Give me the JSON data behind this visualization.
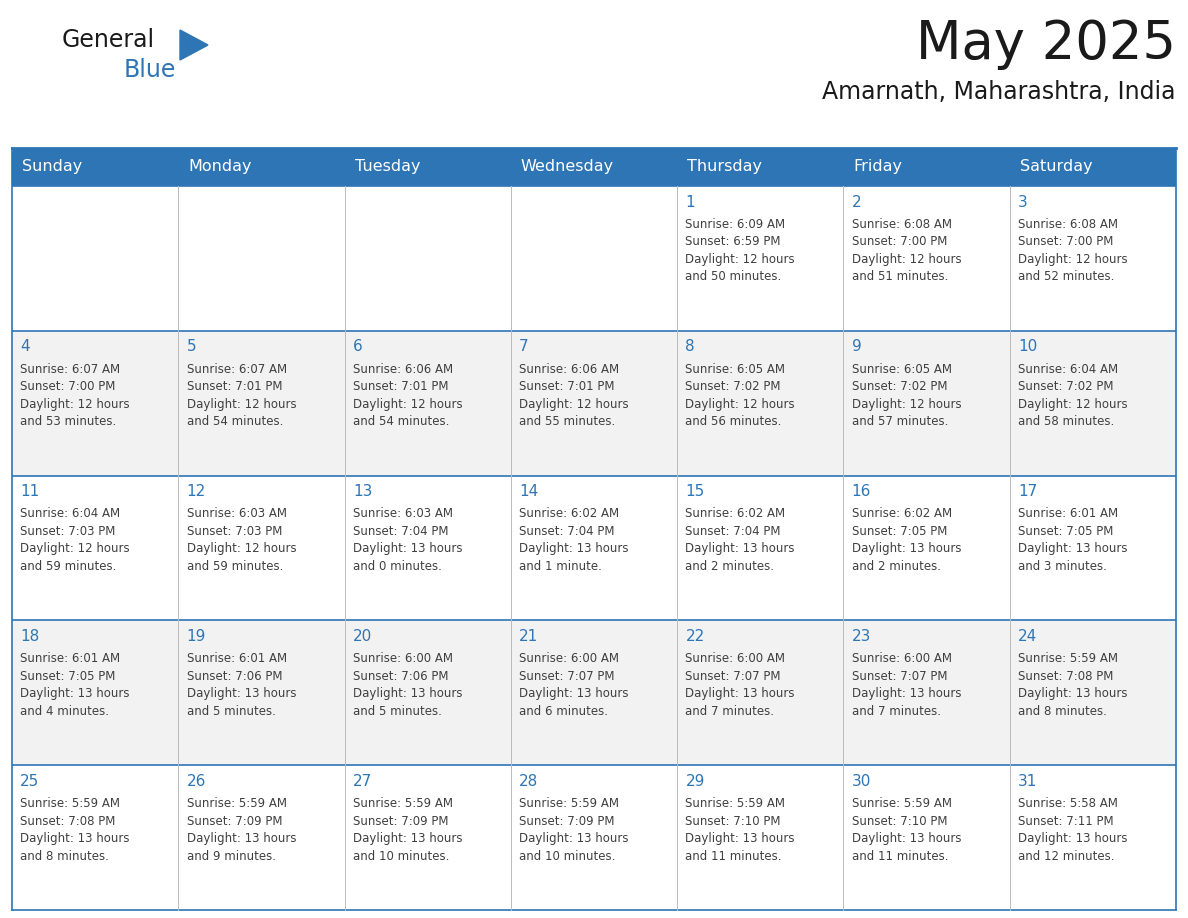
{
  "title": "May 2025",
  "subtitle": "Amarnath, Maharashtra, India",
  "header_bg": "#2E75B6",
  "header_text_color": "#FFFFFF",
  "cell_bg_odd": "#FFFFFF",
  "cell_bg_even": "#F2F2F2",
  "border_color": "#2E75B6",
  "day_number_color": "#2E75B6",
  "cell_text_color": "#404040",
  "days_of_week": [
    "Sunday",
    "Monday",
    "Tuesday",
    "Wednesday",
    "Thursday",
    "Friday",
    "Saturday"
  ],
  "weeks": [
    [
      {
        "day": "",
        "info": ""
      },
      {
        "day": "",
        "info": ""
      },
      {
        "day": "",
        "info": ""
      },
      {
        "day": "",
        "info": ""
      },
      {
        "day": "1",
        "info": "Sunrise: 6:09 AM\nSunset: 6:59 PM\nDaylight: 12 hours\nand 50 minutes."
      },
      {
        "day": "2",
        "info": "Sunrise: 6:08 AM\nSunset: 7:00 PM\nDaylight: 12 hours\nand 51 minutes."
      },
      {
        "day": "3",
        "info": "Sunrise: 6:08 AM\nSunset: 7:00 PM\nDaylight: 12 hours\nand 52 minutes."
      }
    ],
    [
      {
        "day": "4",
        "info": "Sunrise: 6:07 AM\nSunset: 7:00 PM\nDaylight: 12 hours\nand 53 minutes."
      },
      {
        "day": "5",
        "info": "Sunrise: 6:07 AM\nSunset: 7:01 PM\nDaylight: 12 hours\nand 54 minutes."
      },
      {
        "day": "6",
        "info": "Sunrise: 6:06 AM\nSunset: 7:01 PM\nDaylight: 12 hours\nand 54 minutes."
      },
      {
        "day": "7",
        "info": "Sunrise: 6:06 AM\nSunset: 7:01 PM\nDaylight: 12 hours\nand 55 minutes."
      },
      {
        "day": "8",
        "info": "Sunrise: 6:05 AM\nSunset: 7:02 PM\nDaylight: 12 hours\nand 56 minutes."
      },
      {
        "day": "9",
        "info": "Sunrise: 6:05 AM\nSunset: 7:02 PM\nDaylight: 12 hours\nand 57 minutes."
      },
      {
        "day": "10",
        "info": "Sunrise: 6:04 AM\nSunset: 7:02 PM\nDaylight: 12 hours\nand 58 minutes."
      }
    ],
    [
      {
        "day": "11",
        "info": "Sunrise: 6:04 AM\nSunset: 7:03 PM\nDaylight: 12 hours\nand 59 minutes."
      },
      {
        "day": "12",
        "info": "Sunrise: 6:03 AM\nSunset: 7:03 PM\nDaylight: 12 hours\nand 59 minutes."
      },
      {
        "day": "13",
        "info": "Sunrise: 6:03 AM\nSunset: 7:04 PM\nDaylight: 13 hours\nand 0 minutes."
      },
      {
        "day": "14",
        "info": "Sunrise: 6:02 AM\nSunset: 7:04 PM\nDaylight: 13 hours\nand 1 minute."
      },
      {
        "day": "15",
        "info": "Sunrise: 6:02 AM\nSunset: 7:04 PM\nDaylight: 13 hours\nand 2 minutes."
      },
      {
        "day": "16",
        "info": "Sunrise: 6:02 AM\nSunset: 7:05 PM\nDaylight: 13 hours\nand 2 minutes."
      },
      {
        "day": "17",
        "info": "Sunrise: 6:01 AM\nSunset: 7:05 PM\nDaylight: 13 hours\nand 3 minutes."
      }
    ],
    [
      {
        "day": "18",
        "info": "Sunrise: 6:01 AM\nSunset: 7:05 PM\nDaylight: 13 hours\nand 4 minutes."
      },
      {
        "day": "19",
        "info": "Sunrise: 6:01 AM\nSunset: 7:06 PM\nDaylight: 13 hours\nand 5 minutes."
      },
      {
        "day": "20",
        "info": "Sunrise: 6:00 AM\nSunset: 7:06 PM\nDaylight: 13 hours\nand 5 minutes."
      },
      {
        "day": "21",
        "info": "Sunrise: 6:00 AM\nSunset: 7:07 PM\nDaylight: 13 hours\nand 6 minutes."
      },
      {
        "day": "22",
        "info": "Sunrise: 6:00 AM\nSunset: 7:07 PM\nDaylight: 13 hours\nand 7 minutes."
      },
      {
        "day": "23",
        "info": "Sunrise: 6:00 AM\nSunset: 7:07 PM\nDaylight: 13 hours\nand 7 minutes."
      },
      {
        "day": "24",
        "info": "Sunrise: 5:59 AM\nSunset: 7:08 PM\nDaylight: 13 hours\nand 8 minutes."
      }
    ],
    [
      {
        "day": "25",
        "info": "Sunrise: 5:59 AM\nSunset: 7:08 PM\nDaylight: 13 hours\nand 8 minutes."
      },
      {
        "day": "26",
        "info": "Sunrise: 5:59 AM\nSunset: 7:09 PM\nDaylight: 13 hours\nand 9 minutes."
      },
      {
        "day": "27",
        "info": "Sunrise: 5:59 AM\nSunset: 7:09 PM\nDaylight: 13 hours\nand 10 minutes."
      },
      {
        "day": "28",
        "info": "Sunrise: 5:59 AM\nSunset: 7:09 PM\nDaylight: 13 hours\nand 10 minutes."
      },
      {
        "day": "29",
        "info": "Sunrise: 5:59 AM\nSunset: 7:10 PM\nDaylight: 13 hours\nand 11 minutes."
      },
      {
        "day": "30",
        "info": "Sunrise: 5:59 AM\nSunset: 7:10 PM\nDaylight: 13 hours\nand 11 minutes."
      },
      {
        "day": "31",
        "info": "Sunrise: 5:58 AM\nSunset: 7:11 PM\nDaylight: 13 hours\nand 12 minutes."
      }
    ]
  ],
  "logo_general_color": "#1a1a1a",
  "logo_blue_color": "#2E75B6",
  "title_fontsize": 38,
  "subtitle_fontsize": 17,
  "header_fontsize": 11.5,
  "day_num_fontsize": 11,
  "cell_text_fontsize": 8.5
}
